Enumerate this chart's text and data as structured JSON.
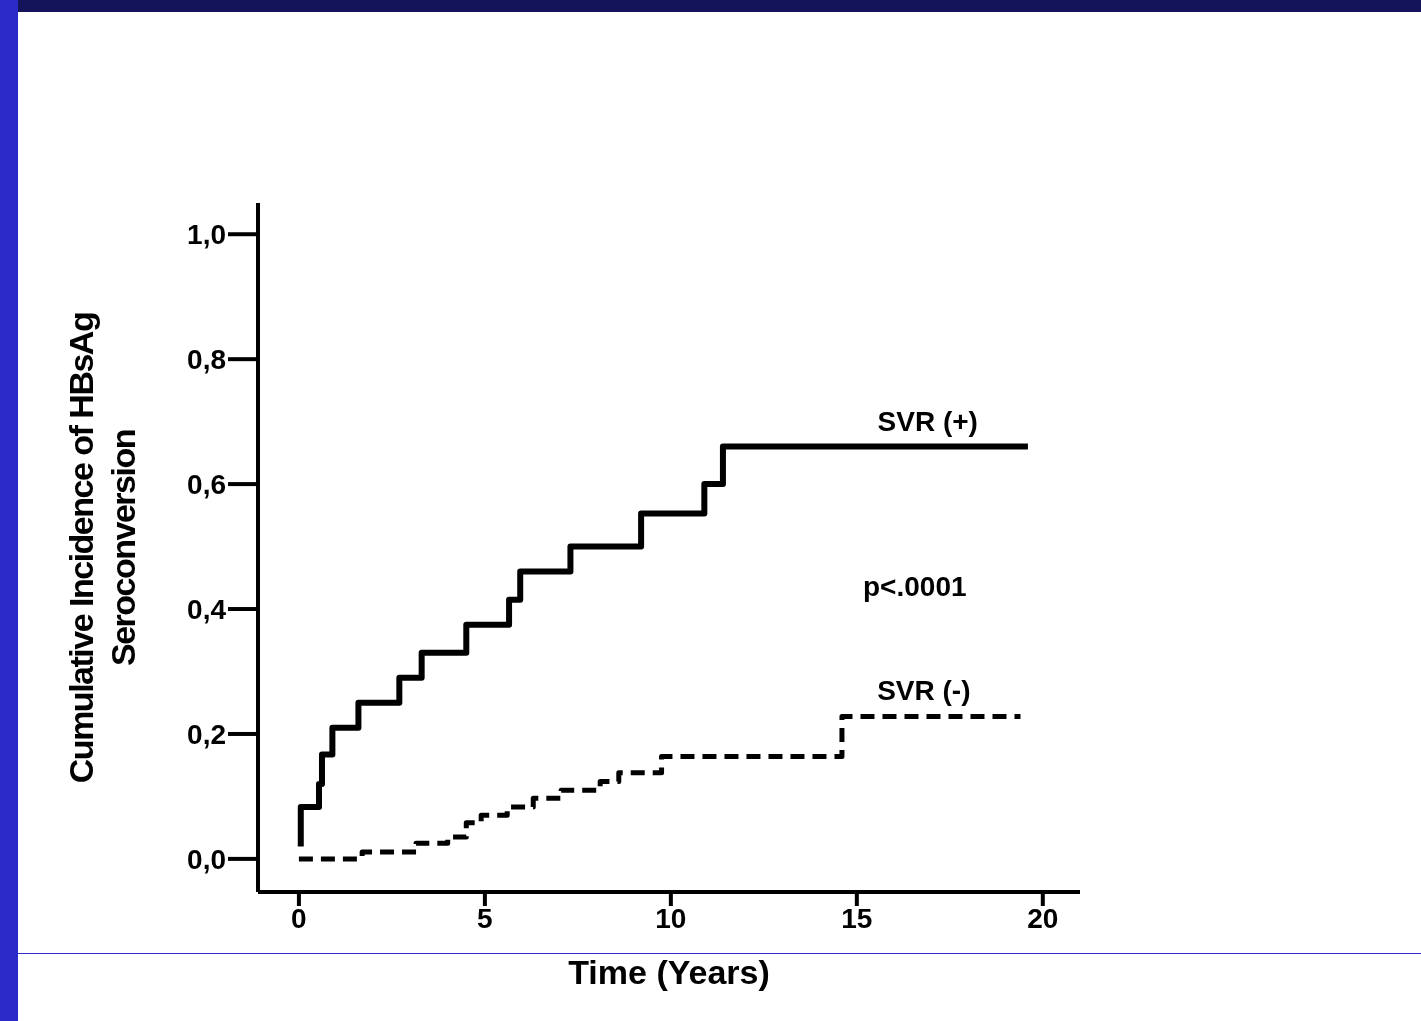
{
  "chart_data": {
    "type": "step",
    "xlabel": "Time (Years)",
    "ylabel": "Cumulative Incidence of HBsAg Seroconversion",
    "annotations": [
      "p<.0001"
    ],
    "marker": "none",
    "xlim": [
      -1.1,
      21
    ],
    "ylim": [
      -0.053,
      1.05
    ],
    "xticks": [
      0,
      5,
      10,
      15,
      20
    ],
    "yticks": [
      {
        "value": 0,
        "label": "0,0"
      },
      {
        "value": 0.2,
        "label": "0,2"
      },
      {
        "value": 0.4,
        "label": "0,4"
      },
      {
        "value": 0.6,
        "label": "0,6"
      },
      {
        "value": 0.8,
        "label": "0,8"
      },
      {
        "value": 1,
        "label": "1,0"
      }
    ],
    "series": [
      {
        "name": "SVR (+)",
        "color": "#000000",
        "line_style": "solid",
        "x": [
          0.05,
          0.05,
          0.54,
          0.62,
          0.9,
          1.6,
          2.7,
          3.3,
          4.5,
          5.65,
          5.95,
          7.3,
          9.2,
          10.9,
          11.4,
          19.6
        ],
        "values": [
          0.02,
          0.083,
          0.12,
          0.167,
          0.21,
          0.25,
          0.29,
          0.33,
          0.375,
          0.415,
          0.46,
          0.5,
          0.553,
          0.6,
          0.66,
          0.66
        ]
      },
      {
        "name": "SVR (-)",
        "color": "#000000",
        "line_style": "dashed",
        "x": [
          0,
          1.7,
          3.15,
          4.0,
          4.5,
          4.9,
          5.6,
          6.3,
          7.05,
          8.1,
          8.6,
          9.75,
          14.6,
          19.4
        ],
        "values": [
          0,
          0.011,
          0.025,
          0.035,
          0.058,
          0.07,
          0.083,
          0.097,
          0.11,
          0.124,
          0.138,
          0.164,
          0.228,
          0.228
        ]
      }
    ]
  }
}
